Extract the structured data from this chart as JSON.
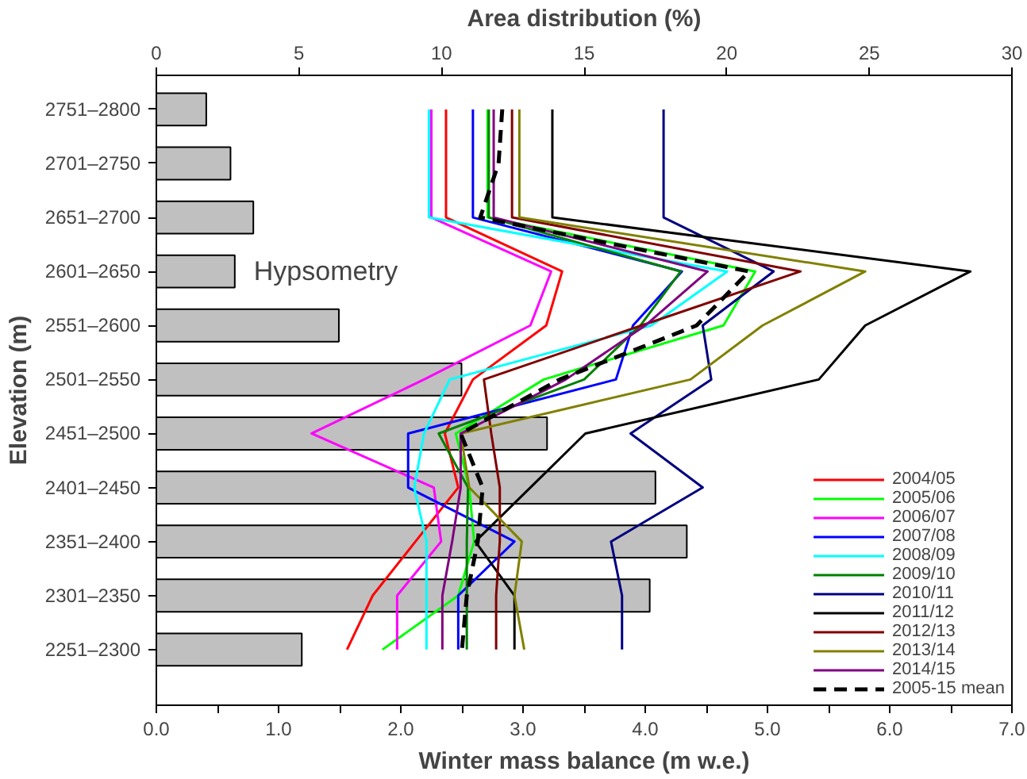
{
  "chart_data": {
    "type": "line",
    "xlabel": "Winter mass balance (m w.e.)",
    "ylabel": "Elevation (m)",
    "x2label": "Area distribution (%)",
    "categories": [
      "2751–2800",
      "2701–2750",
      "2651–2700",
      "2601–2650",
      "2551–2600",
      "2501–2550",
      "2451–2500",
      "2401–2450",
      "2351–2400",
      "2301–2350",
      "2251–2300"
    ],
    "xlim": [
      0,
      7
    ],
    "xticks": [
      {
        "value": 0,
        "label": "0.0"
      },
      {
        "value": 0.5,
        "label": null
      },
      {
        "value": 1,
        "label": "1.0"
      },
      {
        "value": 1.5,
        "label": null
      },
      {
        "value": 2,
        "label": "2.0"
      },
      {
        "value": 2.5,
        "label": null
      },
      {
        "value": 3,
        "label": "3.0"
      },
      {
        "value": 3.5,
        "label": null
      },
      {
        "value": 4,
        "label": "4.0"
      },
      {
        "value": 4.5,
        "label": null
      },
      {
        "value": 5,
        "label": "5.0"
      },
      {
        "value": 5.5,
        "label": null
      },
      {
        "value": 6,
        "label": "6.0"
      },
      {
        "value": 6.5,
        "label": null
      },
      {
        "value": 7,
        "label": "7.0"
      }
    ],
    "x2lim": [
      0,
      30
    ],
    "x2ticks": [
      0,
      5,
      10,
      15,
      20,
      25,
      30
    ],
    "grid": false,
    "legend": "bottom right",
    "orientation": "horizontal",
    "series": [
      {
        "type": "bar",
        "axis": "x2",
        "name": "Hypsometry",
        "color": "#c0c0c0",
        "values": [
          1.75,
          2.6,
          3.4,
          2.75,
          6.4,
          10.7,
          13.7,
          17.5,
          18.6,
          17.3,
          5.1
        ]
      },
      {
        "name": "2004/05",
        "color": "#ff0000",
        "values": [
          2.37,
          2.37,
          2.37,
          3.32,
          3.19,
          2.59,
          2.36,
          2.47,
          2.12,
          1.77,
          1.56
        ]
      },
      {
        "name": "2005/06",
        "color": "#00ff00",
        "values": [
          2.71,
          2.71,
          2.71,
          4.9,
          4.64,
          3.17,
          2.45,
          2.56,
          2.6,
          2.47,
          1.85
        ]
      },
      {
        "name": "2006/07",
        "color": "#ff00ff",
        "values": [
          2.25,
          2.25,
          2.25,
          3.23,
          3.06,
          2.19,
          1.27,
          2.27,
          2.33,
          1.97,
          1.97
        ]
      },
      {
        "name": "2007/08",
        "color": "#0000ff",
        "values": [
          2.59,
          2.59,
          2.59,
          4.3,
          3.9,
          3.76,
          2.06,
          2.06,
          2.93,
          2.47,
          2.47
        ]
      },
      {
        "name": "2008/09",
        "color": "#00ffff",
        "values": [
          2.23,
          2.23,
          2.23,
          4.67,
          4.05,
          2.4,
          2.19,
          2.11,
          2.21,
          2.21,
          2.21
        ]
      },
      {
        "name": "2009/10",
        "color": "#008000",
        "values": [
          2.72,
          2.72,
          2.72,
          4.29,
          3.96,
          3.5,
          2.31,
          2.55,
          2.54,
          2.54,
          2.54
        ]
      },
      {
        "name": "2010/11",
        "color": "#000080",
        "values": [
          4.15,
          4.15,
          4.15,
          5.05,
          4.47,
          4.54,
          3.88,
          4.47,
          3.72,
          3.81,
          3.81
        ]
      },
      {
        "name": "2011/12",
        "color": "#000000",
        "values": [
          3.24,
          3.24,
          3.24,
          6.66,
          5.8,
          5.42,
          3.51,
          3.06,
          2.61,
          2.93,
          2.93
        ]
      },
      {
        "name": "2012/13",
        "color": "#800000",
        "values": [
          2.91,
          2.91,
          2.91,
          5.27,
          3.97,
          2.68,
          2.74,
          2.81,
          2.81,
          2.78,
          2.78
        ]
      },
      {
        "name": "2013/14",
        "color": "#808000",
        "values": [
          2.97,
          2.97,
          2.97,
          5.8,
          4.96,
          4.37,
          2.49,
          2.56,
          2.99,
          2.93,
          3.01
        ]
      },
      {
        "name": "2014/15",
        "color": "#800080",
        "values": [
          2.76,
          2.76,
          2.76,
          4.51,
          4.0,
          3.35,
          2.49,
          2.49,
          2.42,
          2.34,
          2.34
        ]
      },
      {
        "name": "2005-15 mean",
        "color": "#000000",
        "line_style": "dashed",
        "values": [
          2.83,
          2.8,
          2.65,
          4.85,
          4.42,
          3.3,
          2.49,
          2.67,
          2.63,
          2.54,
          2.5
        ]
      }
    ]
  }
}
